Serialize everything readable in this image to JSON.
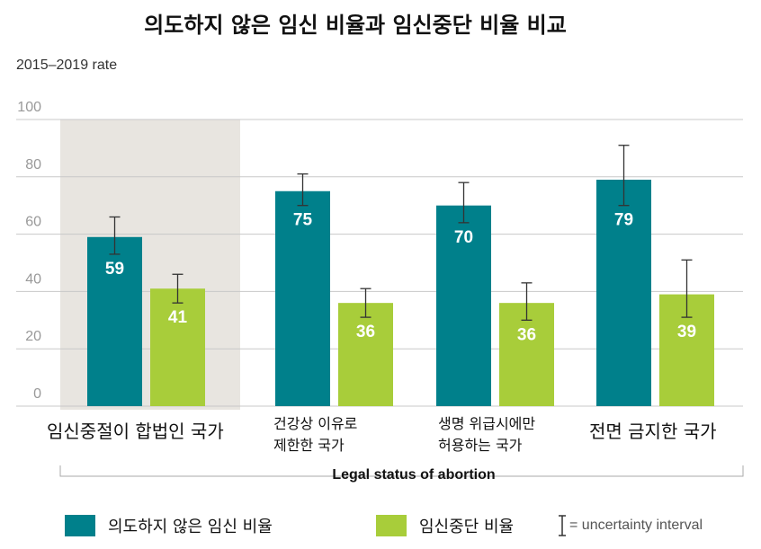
{
  "chart_data": {
    "type": "bar",
    "title": "의도하지 않은 임신 비율과 임신중단 비율 비교",
    "subtitle": "2015–2019 rate",
    "xlabel": "Legal status of abortion",
    "ylabel": "",
    "ylim": [
      0,
      100
    ],
    "yticks": [
      "0",
      "20",
      "40",
      "60",
      "80",
      "100"
    ],
    "grid": true,
    "highlighted_category": 0,
    "categories": [
      [
        "임신중절이 합법인 국가"
      ],
      [
        "건강상 이유로",
        "제한한 국가"
      ],
      [
        "생명 위급시에만",
        "허용하는 국가"
      ],
      [
        "전면 금지한 국가"
      ]
    ],
    "series": [
      {
        "name": "의도하지 않은 임신 비율",
        "color": "#00808b",
        "values": [
          59,
          75,
          70,
          79
        ],
        "ci_low": [
          53,
          70,
          64,
          70
        ],
        "ci_high": [
          66,
          81,
          78,
          91
        ]
      },
      {
        "name": "임신중단 비율",
        "color": "#a8cd3a",
        "values": [
          41,
          36,
          36,
          39
        ],
        "ci_low": [
          36,
          31,
          30,
          31
        ],
        "ci_high": [
          46,
          41,
          43,
          51
        ]
      }
    ],
    "legend": {
      "placement": "bottom",
      "ci_label": "= uncertainty interval"
    }
  }
}
